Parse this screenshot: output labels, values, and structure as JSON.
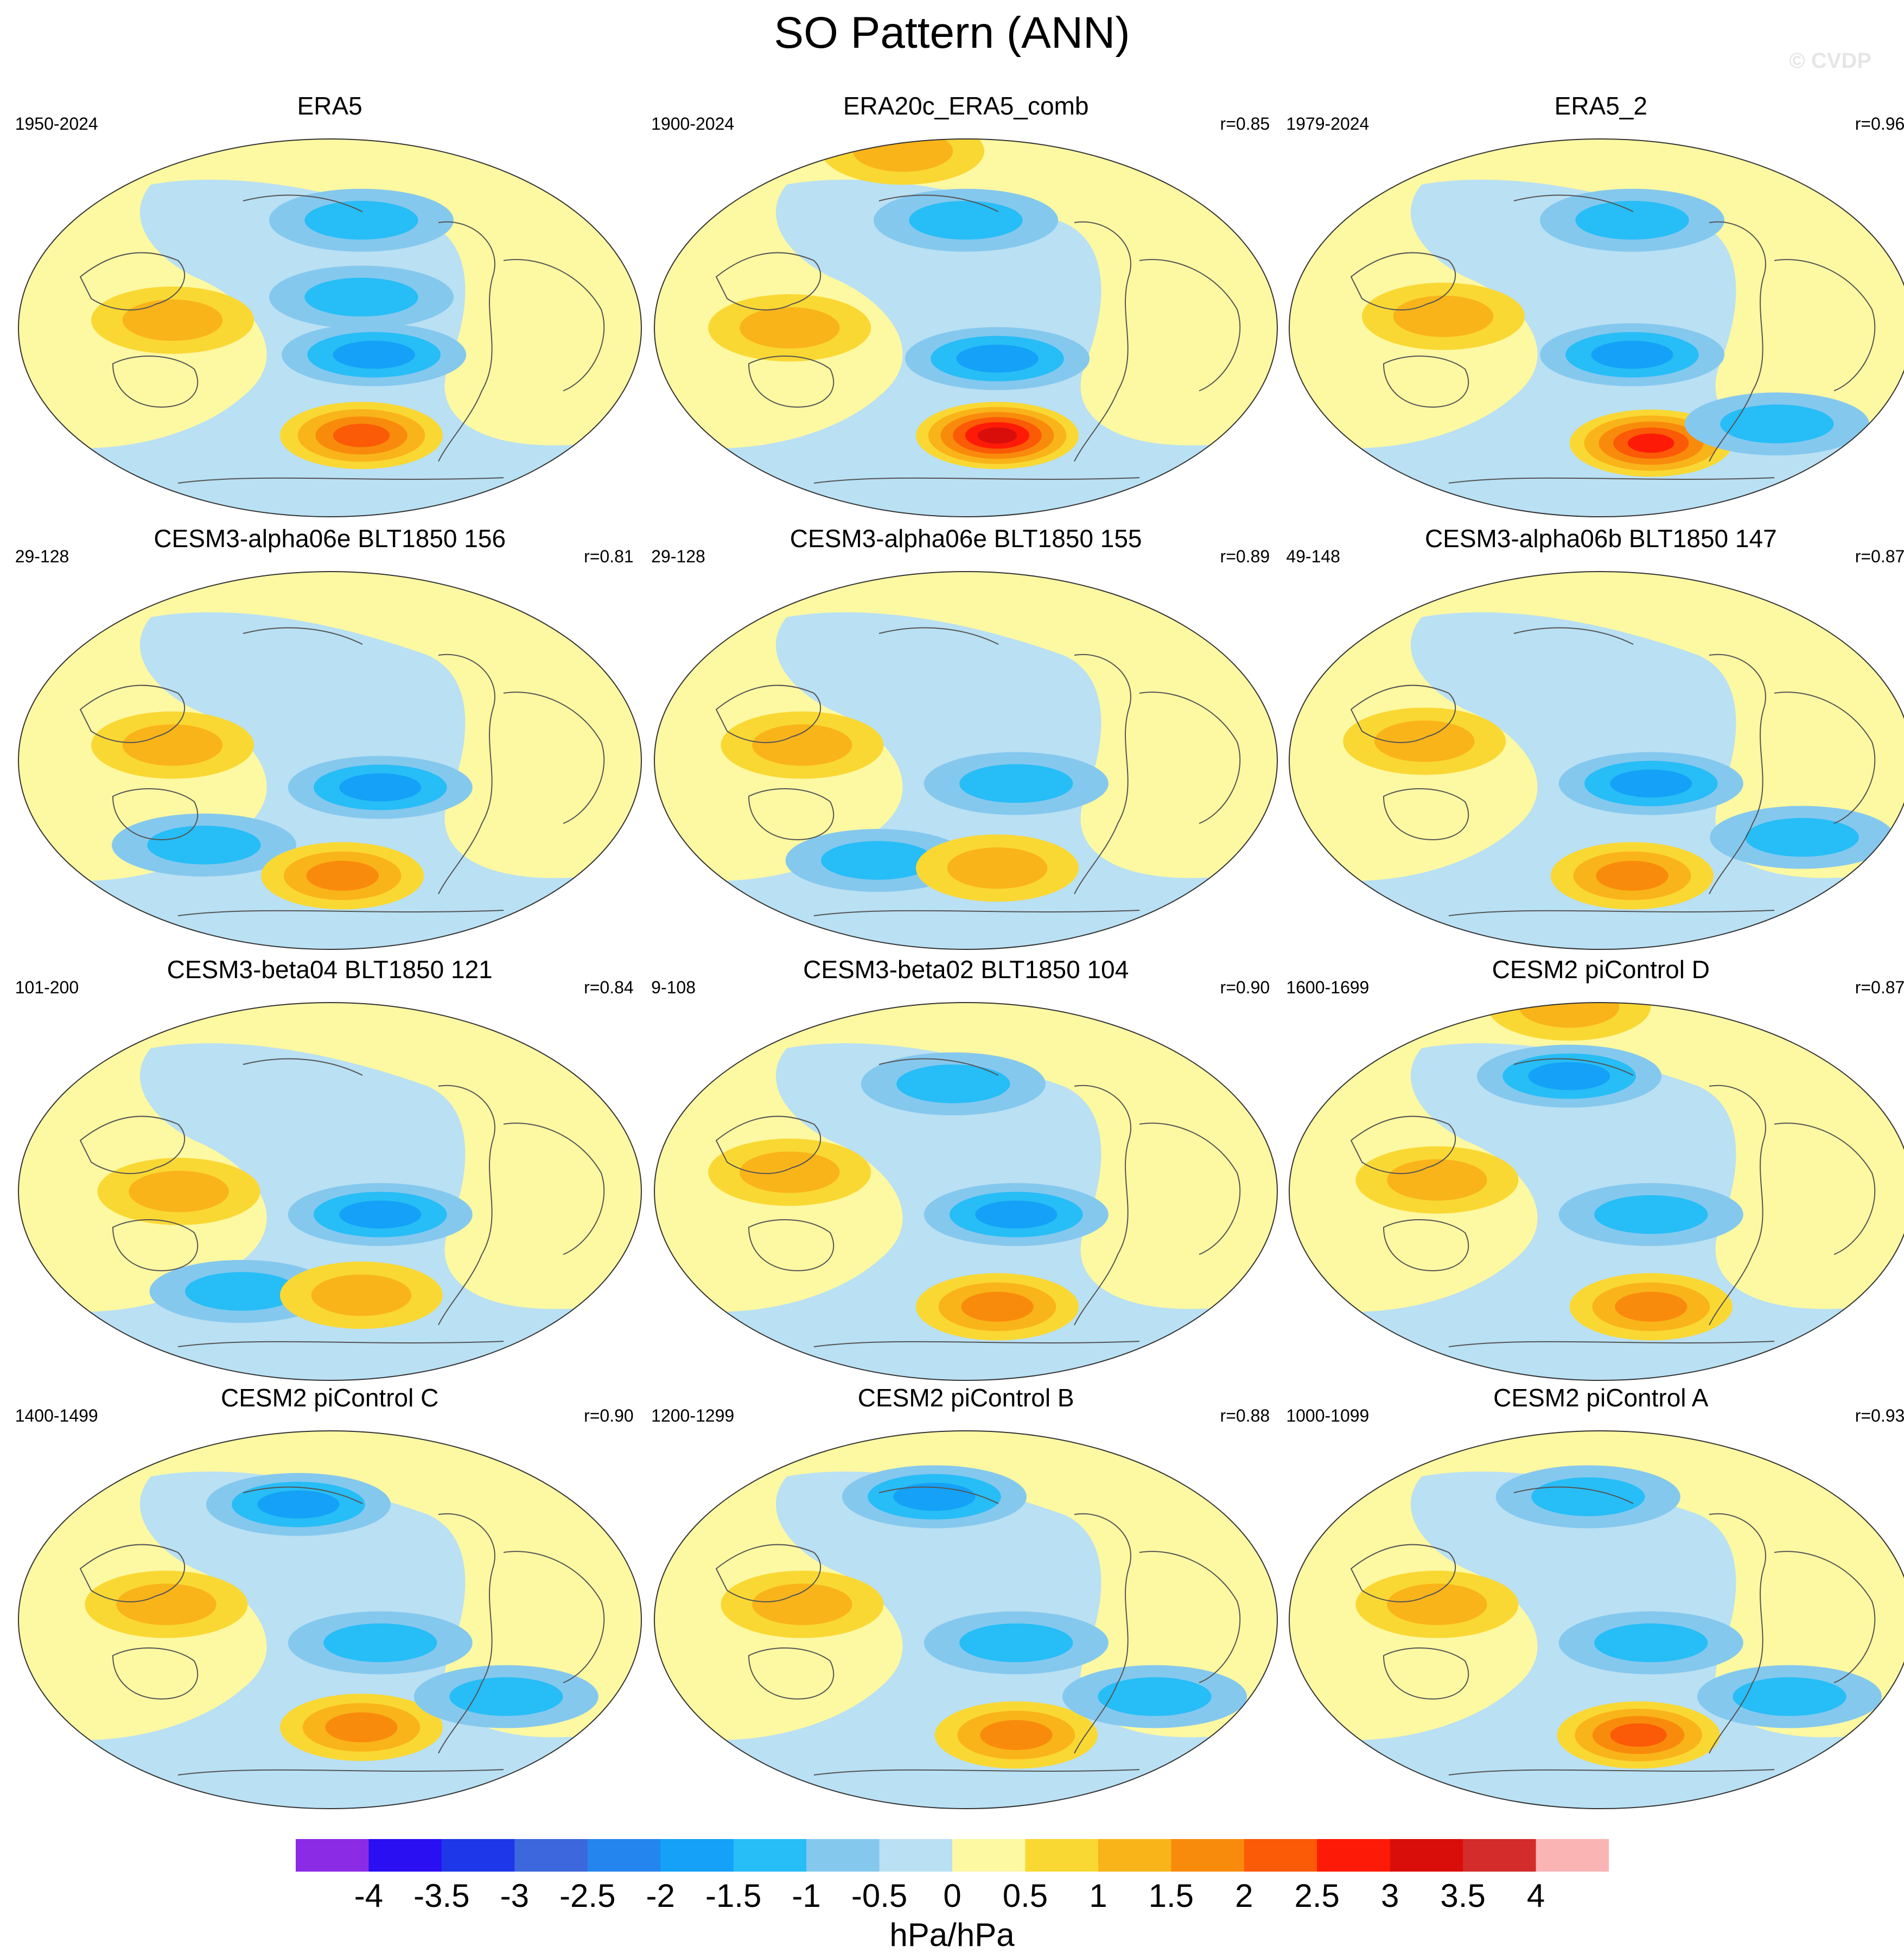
{
  "title": "SO Pattern (ANN)",
  "credit": "© CVDP",
  "units": "hPa/hPa",
  "colors": {
    "levels": [
      "#8b2be6",
      "#2a0ff3",
      "#1e37e8",
      "#3d67dc",
      "#2585ef",
      "#14a1f7",
      "#27bdf6",
      "#85c8ee",
      "#b9e0f3",
      "#fdf8a2",
      "#fad833",
      "#f9b41a",
      "#f98b0c",
      "#fb5a06",
      "#fd1b07",
      "#d90e0b",
      "#d42b2b",
      "#fbb4b4"
    ],
    "coast": "#555555",
    "mapEdge": "#333333"
  },
  "chart_data": {
    "type": "contour-map-panels",
    "projection": "Robinson-like (Pacific-centered)",
    "colorbar": {
      "ticks": [
        "-4",
        "-3.5",
        "-3",
        "-2.5",
        "-2",
        "-1.5",
        "-1",
        "-0.5",
        "0",
        "0.5",
        "1",
        "1.5",
        "2",
        "2.5",
        "3",
        "3.5",
        "4"
      ],
      "range": [
        -4,
        4
      ],
      "units": "hPa/hPa"
    },
    "panels": [
      {
        "title": "ERA5",
        "years": "1950-2024",
        "corr": "",
        "features": [
          [
            "neg",
            -1,
            0.55,
            0.22
          ],
          [
            "neg",
            -1.5,
            0.57,
            0.57
          ],
          [
            "neg",
            -1,
            0.55,
            0.42
          ],
          [
            "pos",
            1,
            0.25,
            0.48
          ],
          [
            "pos",
            2,
            0.55,
            0.78
          ]
        ]
      },
      {
        "title": "ERA20c_ERA5_comb",
        "years": "1900-2024",
        "corr": "r=0.85",
        "features": [
          [
            "neg",
            -1,
            0.5,
            0.22
          ],
          [
            "neg",
            -1.5,
            0.55,
            0.58
          ],
          [
            "pos",
            1,
            0.4,
            0.04
          ],
          [
            "pos",
            1,
            0.22,
            0.5
          ],
          [
            "pos",
            3,
            0.55,
            0.78
          ]
        ]
      },
      {
        "title": "ERA5_2",
        "years": "1979-2024",
        "corr": "r=0.96",
        "features": [
          [
            "neg",
            -1,
            0.55,
            0.22
          ],
          [
            "neg",
            -1.5,
            0.55,
            0.57
          ],
          [
            "pos",
            1,
            0.25,
            0.47
          ],
          [
            "pos",
            2.5,
            0.58,
            0.8
          ],
          [
            "neg",
            -1,
            0.78,
            0.75
          ]
        ]
      },
      {
        "title": "CESM3-alpha06e BLT1850 156",
        "years": "29-128",
        "corr": "r=0.81",
        "features": [
          [
            "pos",
            1,
            0.25,
            0.46
          ],
          [
            "neg",
            -1.5,
            0.58,
            0.57
          ],
          [
            "neg",
            -1,
            0.3,
            0.72
          ],
          [
            "pos",
            1.5,
            0.52,
            0.8
          ]
        ]
      },
      {
        "title": "CESM3-alpha06e BLT1850 155",
        "years": "29-128",
        "corr": "r=0.89",
        "features": [
          [
            "pos",
            1,
            0.24,
            0.46
          ],
          [
            "neg",
            -1,
            0.58,
            0.56
          ],
          [
            "neg",
            -1,
            0.36,
            0.76
          ],
          [
            "pos",
            1,
            0.55,
            0.78
          ]
        ]
      },
      {
        "title": "CESM3-alpha06b BLT1850 147",
        "years": "49-148",
        "corr": "r=0.87",
        "features": [
          [
            "pos",
            1,
            0.22,
            0.45
          ],
          [
            "neg",
            -1.5,
            0.58,
            0.56
          ],
          [
            "pos",
            1.5,
            0.55,
            0.8
          ],
          [
            "neg",
            -1,
            0.82,
            0.7
          ]
        ]
      },
      {
        "title": "CESM3-beta04 BLT1850 121",
        "years": "101-200",
        "corr": "r=0.84",
        "features": [
          [
            "pos",
            1,
            0.26,
            0.5
          ],
          [
            "neg",
            -1.5,
            0.58,
            0.56
          ],
          [
            "neg",
            -1,
            0.36,
            0.76
          ],
          [
            "pos",
            1,
            0.55,
            0.77
          ]
        ]
      },
      {
        "title": "CESM3-beta02 BLT1850 104",
        "years": "9-108",
        "corr": "r=0.90",
        "features": [
          [
            "neg",
            -1,
            0.48,
            0.22
          ],
          [
            "pos",
            1,
            0.22,
            0.45
          ],
          [
            "neg",
            -1.5,
            0.58,
            0.56
          ],
          [
            "pos",
            1.5,
            0.55,
            0.8
          ]
        ]
      },
      {
        "title": "CESM2 piControl D",
        "years": "1600-1699",
        "corr": "r=0.87",
        "features": [
          [
            "pos",
            1,
            0.45,
            0.02
          ],
          [
            "neg",
            -1.5,
            0.45,
            0.2
          ],
          [
            "pos",
            1,
            0.24,
            0.47
          ],
          [
            "neg",
            -1,
            0.58,
            0.56
          ],
          [
            "pos",
            1.5,
            0.58,
            0.8
          ]
        ]
      },
      {
        "title": "CESM2 piControl C",
        "years": "1400-1499",
        "corr": "r=0.90",
        "features": [
          [
            "neg",
            -1.5,
            0.45,
            0.2
          ],
          [
            "pos",
            1,
            0.24,
            0.46
          ],
          [
            "neg",
            -1,
            0.58,
            0.56
          ],
          [
            "pos",
            1.5,
            0.55,
            0.78
          ],
          [
            "neg",
            -1,
            0.78,
            0.7
          ]
        ]
      },
      {
        "title": "CESM2 piControl B",
        "years": "1200-1299",
        "corr": "r=0.88",
        "features": [
          [
            "neg",
            -1.5,
            0.45,
            0.18
          ],
          [
            "pos",
            1,
            0.24,
            0.46
          ],
          [
            "neg",
            -1,
            0.58,
            0.56
          ],
          [
            "pos",
            1.5,
            0.58,
            0.8
          ],
          [
            "neg",
            -1,
            0.8,
            0.7
          ]
        ]
      },
      {
        "title": "CESM2 piControl A",
        "years": "1000-1099",
        "corr": "r=0.93",
        "features": [
          [
            "neg",
            -1,
            0.48,
            0.18
          ],
          [
            "pos",
            1,
            0.24,
            0.46
          ],
          [
            "neg",
            -1,
            0.58,
            0.56
          ],
          [
            "pos",
            2,
            0.56,
            0.8
          ],
          [
            "neg",
            -1,
            0.8,
            0.7
          ]
        ]
      }
    ]
  }
}
